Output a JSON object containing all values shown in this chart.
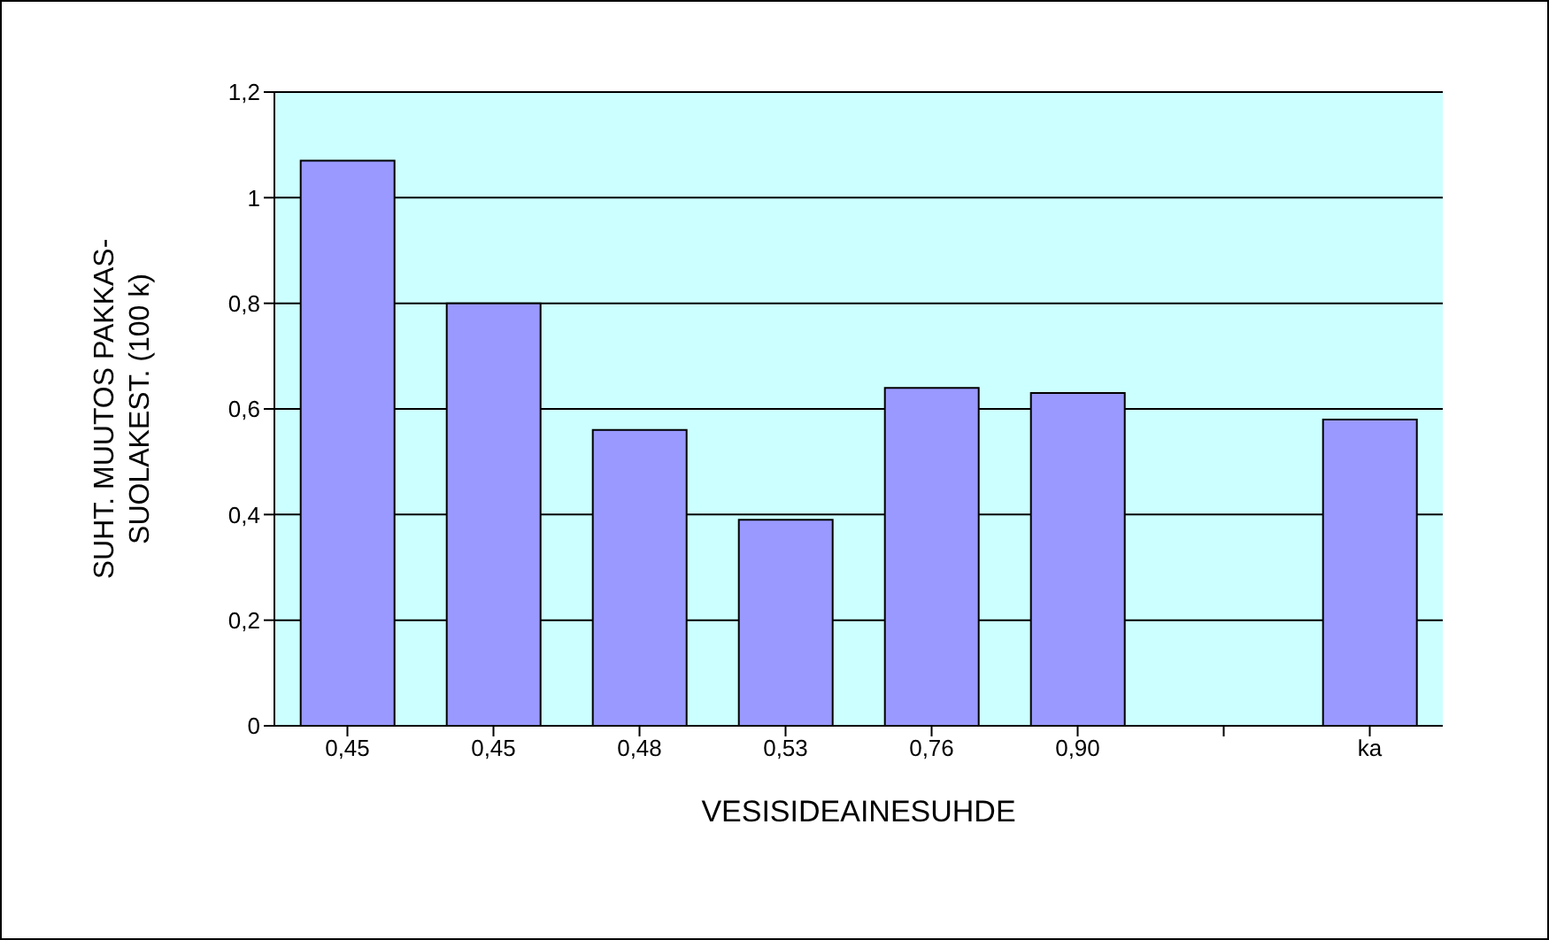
{
  "chart_data": {
    "type": "bar",
    "xlabel": "VESISIDEAINESUHDE",
    "ylabel": "SUHT. MUUTOS PAKKAS-\nSUOLAKEST. (100 k)",
    "categories": [
      "0,45",
      "0,45",
      "0,48",
      "0,53",
      "0,76",
      "0,90",
      null,
      "ka"
    ],
    "values": [
      1.07,
      0.8,
      0.56,
      0.39,
      0.64,
      0.63,
      null,
      0.58
    ],
    "color": "#9999ff",
    "ylim": [
      0,
      1.2
    ],
    "yticks": [
      {
        "value": 0,
        "label": "0"
      },
      {
        "value": 0.2,
        "label": "0,2"
      },
      {
        "value": 0.4,
        "label": "0,4"
      },
      {
        "value": 0.6,
        "label": "0,6"
      },
      {
        "value": 0.8,
        "label": "0,8"
      },
      {
        "value": 1,
        "label": "1"
      },
      {
        "value": 1.2,
        "label": "1,2"
      }
    ],
    "grid": "y",
    "legend": false
  }
}
